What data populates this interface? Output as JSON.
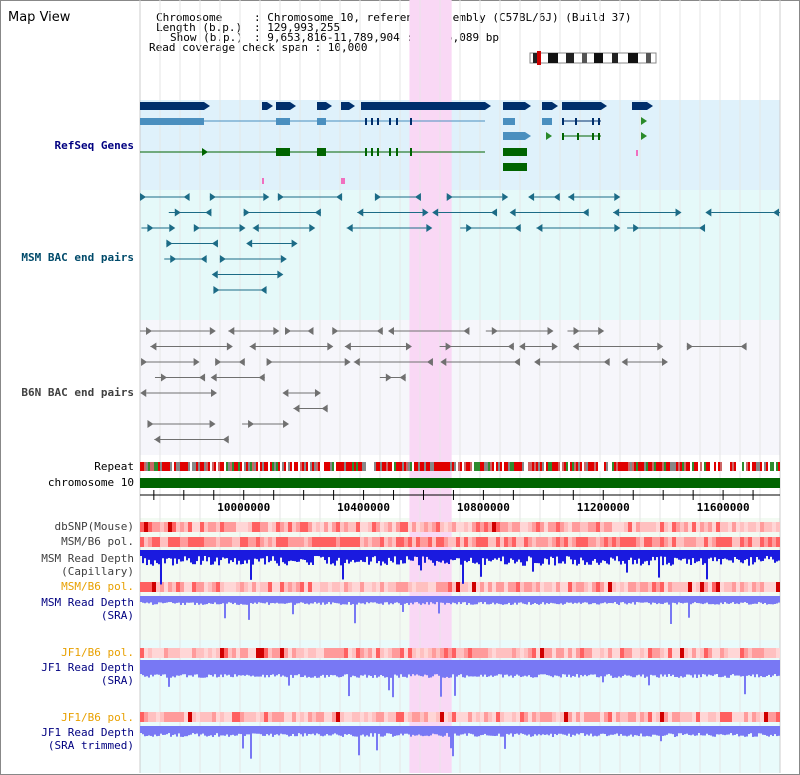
{
  "title": "Map View",
  "info": {
    "chromosome_key": "Chromosome",
    "chromosome_val": ": Chromosome 10, reference assembly (C57BL/6J) (Build 37)",
    "length_key": "Length (b.p.)",
    "length_val": ": 129,993,255",
    "show_key": "Show (b.p.)",
    "show_val": ": 9,653,816-11,789,904 : 2,136,089 bp",
    "coverage": "Read coverage check span : 10,000"
  },
  "tracks": {
    "refseq": "RefSeq Genes",
    "msm_bac": "MSM BAC end pairs",
    "b6n_bac": "B6N BAC end pairs",
    "repeat": "Repeat",
    "chromosome": "chromosome 10",
    "dbsnp": "dbSNP(Mouse)",
    "msm_b6_pol": "MSM/B6 pol.",
    "msm_read_depth_cap_1": "MSM Read Depth",
    "msm_read_depth_cap_2": "(Capillary)",
    "msm_b6_pol_2": "MSM/B6 pol.",
    "msm_read_depth_sra_1": "MSM Read Depth",
    "msm_read_depth_sra_2": "(SRA)",
    "jf1_b6_pol": "JF1/B6 pol.",
    "jf1_read_depth_1": "JF1 Read Depth",
    "jf1_read_depth_2": "(SRA)",
    "jf1_b6_pol_2": "JF1/B6 pol.",
    "jf1_read_depth_trim_1": "JF1 Read Depth",
    "jf1_read_depth_trim_2": "(SRA trimmed)"
  },
  "axis": {
    "ticks": [
      "10000000",
      "10400000",
      "10800000",
      "11200000",
      "11600000"
    ],
    "tick_values": [
      10000000,
      10400000,
      10800000,
      11200000,
      11600000
    ],
    "range": [
      9653816,
      11789904
    ]
  },
  "highlight_range": [
    10553000,
    10694000
  ],
  "colors": {
    "refseq_bg": "#dff1fb",
    "msm_bg": "#e5f9f9",
    "b6n_bg": "#f6f6fb",
    "highlight": "#f9d8f5",
    "gene_dark": "#002f6c",
    "gene_mid": "#4a8fbf",
    "gene_green": "#006400",
    "bac_teal": "#1c6b86",
    "bac_gray": "#707070",
    "chromosome_green": "#006400",
    "depth_blue": "#1a1adf",
    "depth_light": "#7878f4"
  }
}
